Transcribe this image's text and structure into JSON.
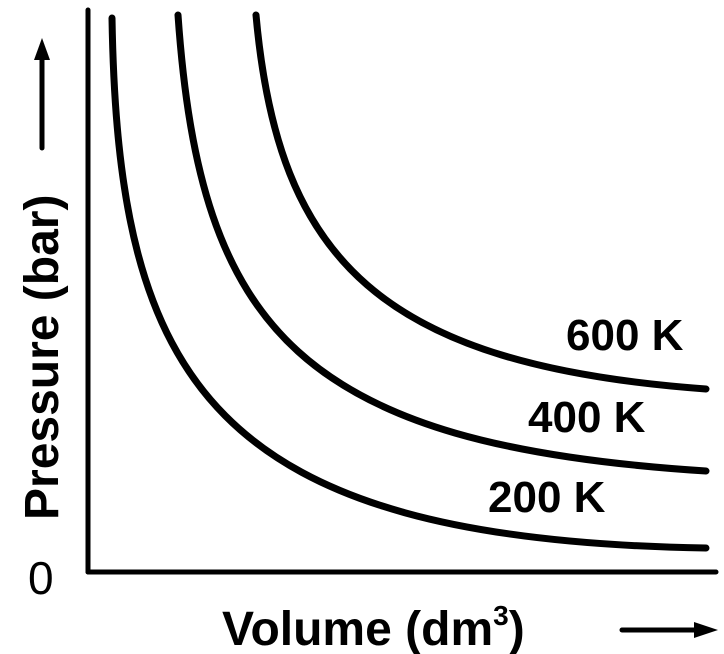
{
  "chart_data": {
    "type": "line",
    "xlabel": "Volume (dm",
    "xlabel_superscript": "3",
    "xlabel_close": ")",
    "ylabel": "Pressure (bar)",
    "origin_label": "0",
    "series": [
      {
        "name": "600 K"
      },
      {
        "name": "400 K"
      },
      {
        "name": "200 K"
      }
    ],
    "grid": false,
    "legend": "inline-right"
  }
}
